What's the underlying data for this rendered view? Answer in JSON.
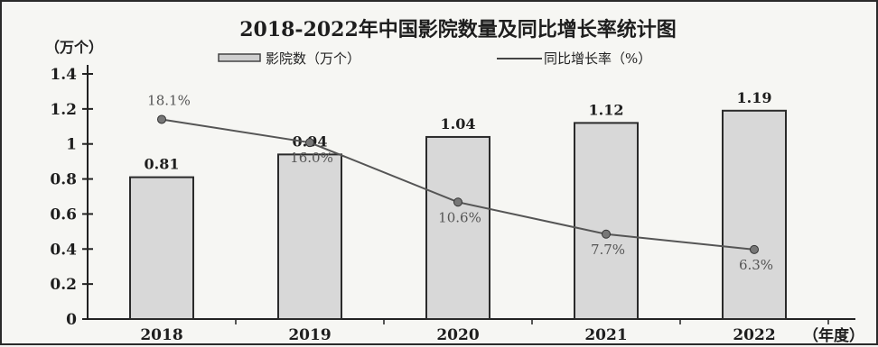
{
  "chart_data": {
    "type": "bar",
    "title": "2018-2022年中国影院数量及同比增长率统计图",
    "ylabel": "（万个）",
    "xlabel_suffix": "（年度）",
    "ylim": [
      0,
      1.4
    ],
    "yticks": [
      "0",
      "0.2",
      "0.4",
      "0.6",
      "0.8",
      "1",
      "1.2",
      "1.4"
    ],
    "categories": [
      "2018",
      "2019",
      "2020",
      "2021",
      "2022"
    ],
    "legend_placement": "top",
    "series": [
      {
        "name": "影院数（万个）",
        "type": "bar",
        "values": [
          0.81,
          0.94,
          1.04,
          1.12,
          1.19
        ],
        "labels": [
          "0.81",
          "0.94",
          "1.04",
          "1.12",
          "1.19"
        ],
        "color": "#d8d8d8"
      },
      {
        "name": "同比增长率（%）",
        "type": "line",
        "values": [
          18.1,
          16.0,
          10.6,
          7.7,
          6.3
        ],
        "labels": [
          "18.1%",
          "16.0%",
          "10.6%",
          "7.7%",
          "6.3%"
        ],
        "color": "#555555"
      }
    ]
  }
}
